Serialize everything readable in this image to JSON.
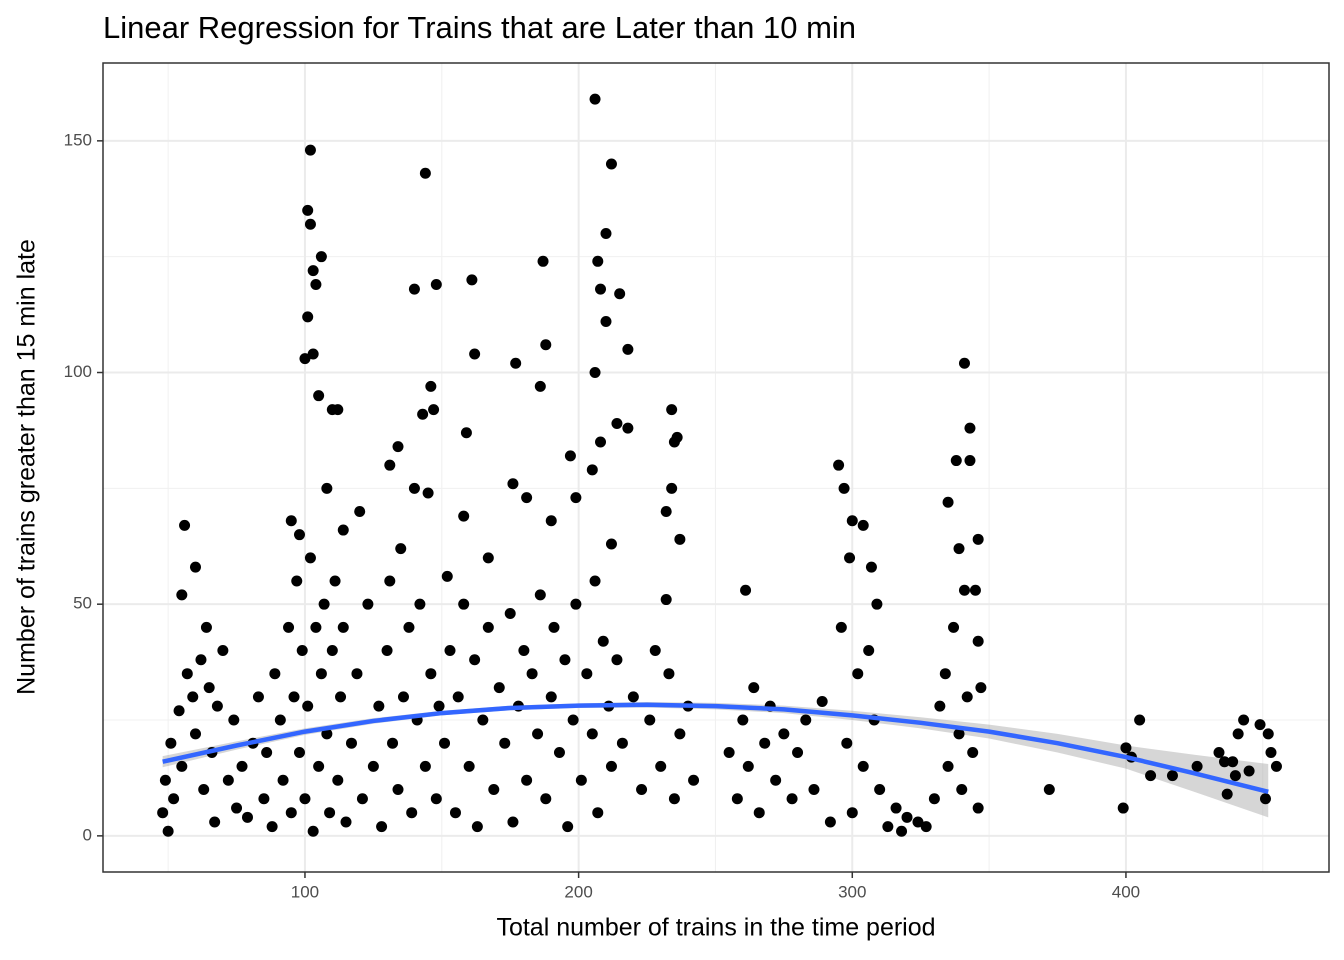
{
  "chart_data": {
    "type": "scatter",
    "title": "Linear Regression for Trains that are Later than 10 min",
    "x_label": "Total number of trains in the time period",
    "y_label": "Number of trains greater than 15 min late",
    "xlim": [
      26.2,
      474.2
    ],
    "ylim": [
      -7.8,
      166.8
    ],
    "xticks": [
      100,
      200,
      300,
      400
    ],
    "yticks": [
      0,
      50,
      100,
      150
    ],
    "minor_xticks": [
      50,
      150,
      250,
      350,
      450
    ],
    "minor_yticks": [
      25,
      75,
      125
    ],
    "grid": true,
    "color": "#000000",
    "x": [
      206,
      102,
      212,
      144,
      101,
      102,
      210,
      103,
      104,
      106,
      161,
      140,
      148,
      187,
      207,
      208,
      215,
      101,
      210,
      218,
      100,
      103,
      162,
      177,
      188,
      341,
      206,
      146,
      186,
      234,
      143,
      147,
      112,
      105,
      236,
      343,
      235,
      159,
      110,
      197,
      214,
      218,
      208,
      60,
      56,
      55,
      95,
      98,
      108,
      114,
      120,
      131,
      134,
      140,
      145,
      152,
      158,
      167,
      176,
      181,
      190,
      199,
      205,
      212,
      232,
      234,
      237,
      232,
      261,
      295,
      297,
      300,
      299,
      304,
      307,
      309,
      335,
      338,
      343,
      339,
      345,
      341,
      346,
      346,
      48,
      49,
      50,
      51,
      52,
      54,
      55,
      57,
      59,
      60,
      62,
      63,
      64,
      65,
      66,
      67,
      68,
      70,
      72,
      74,
      75,
      77,
      79,
      81,
      83,
      85,
      86,
      88,
      89,
      91,
      92,
      94,
      95,
      96,
      97,
      98,
      99,
      100,
      101,
      102,
      103,
      104,
      105,
      106,
      107,
      108,
      109,
      110,
      111,
      112,
      113,
      114,
      115,
      117,
      119,
      121,
      123,
      125,
      127,
      128,
      130,
      131,
      132,
      134,
      135,
      136,
      138,
      139,
      141,
      142,
      144,
      146,
      148,
      149,
      151,
      153,
      155,
      156,
      158,
      160,
      162,
      163,
      165,
      167,
      169,
      171,
      173,
      175,
      176,
      178,
      180,
      181,
      183,
      185,
      186,
      188,
      190,
      191,
      193,
      195,
      196,
      198,
      199,
      201,
      203,
      205,
      206,
      207,
      209,
      211,
      212,
      214,
      216,
      220,
      223,
      226,
      228,
      230,
      233,
      235,
      237,
      240,
      242,
      255,
      258,
      260,
      262,
      264,
      266,
      268,
      270,
      272,
      275,
      278,
      280,
      283,
      286,
      289,
      292,
      296,
      298,
      300,
      302,
      304,
      306,
      308,
      310,
      313,
      316,
      318,
      320,
      324,
      327,
      330,
      332,
      334,
      335,
      337,
      339,
      340,
      342,
      344,
      346,
      347,
      372,
      399,
      400,
      402,
      405,
      409,
      417,
      426,
      434,
      436,
      437,
      440,
      443,
      441,
      445,
      449,
      451,
      452,
      453,
      455,
      439
    ],
    "y": [
      159,
      148,
      145,
      143,
      135,
      132,
      130,
      122,
      119,
      125,
      120,
      118,
      119,
      124,
      124,
      118,
      117,
      112,
      111,
      105,
      103,
      104,
      104,
      102,
      106,
      102,
      100,
      97,
      97,
      92,
      91,
      92,
      92,
      95,
      86,
      88,
      85,
      87,
      92,
      82,
      89,
      88,
      85,
      58,
      67,
      52,
      68,
      65,
      75,
      66,
      70,
      80,
      84,
      75,
      74,
      56,
      69,
      60,
      76,
      73,
      68,
      73,
      79,
      63,
      70,
      75,
      64,
      51,
      53,
      80,
      75,
      68,
      60,
      67,
      58,
      50,
      72,
      81,
      81,
      62,
      53,
      53,
      64,
      42,
      5,
      12,
      1,
      20,
      8,
      27,
      15,
      35,
      30,
      22,
      38,
      10,
      45,
      32,
      18,
      3,
      28,
      40,
      12,
      25,
      6,
      15,
      4,
      20,
      30,
      8,
      18,
      2,
      35,
      25,
      12,
      45,
      5,
      30,
      55,
      18,
      40,
      8,
      28,
      60,
      1,
      45,
      15,
      35,
      50,
      22,
      5,
      40,
      55,
      12,
      30,
      45,
      3,
      20,
      35,
      8,
      50,
      15,
      28,
      2,
      40,
      55,
      20,
      10,
      62,
      30,
      45,
      5,
      25,
      50,
      15,
      35,
      8,
      28,
      20,
      40,
      5,
      30,
      50,
      15,
      38,
      2,
      25,
      45,
      10,
      32,
      20,
      48,
      3,
      28,
      40,
      12,
      35,
      22,
      52,
      8,
      30,
      45,
      18,
      38,
      2,
      25,
      50,
      12,
      35,
      22,
      55,
      5,
      42,
      28,
      15,
      38,
      20,
      30,
      10,
      25,
      40,
      15,
      35,
      8,
      22,
      28,
      12,
      18,
      8,
      25,
      15,
      32,
      5,
      20,
      28,
      12,
      22,
      8,
      18,
      25,
      10,
      29,
      3,
      45,
      20,
      5,
      35,
      15,
      40,
      25,
      10,
      2,
      6,
      1,
      4,
      3,
      2,
      8,
      28,
      35,
      15,
      45,
      22,
      10,
      30,
      18,
      6,
      32,
      10,
      6,
      19,
      17,
      25,
      13,
      13,
      15,
      18,
      16,
      9,
      13,
      25,
      22,
      14,
      24,
      8,
      22,
      18,
      15,
      16
    ],
    "fit": {
      "color": "#3366ff",
      "band_color": "#999999",
      "x": [
        48,
        75,
        100,
        125,
        150,
        175,
        200,
        225,
        250,
        275,
        300,
        325,
        350,
        375,
        400,
        425,
        452
      ],
      "y": [
        16,
        19.5,
        22.5,
        24.8,
        26.5,
        27.6,
        28.1,
        28.3,
        28,
        27.3,
        26,
        24.4,
        22.5,
        20,
        17,
        13.5,
        9.5
      ],
      "lower": [
        14.8,
        18.6,
        21.8,
        24.2,
        26,
        27.1,
        27.6,
        27.7,
        27.3,
        26.5,
        25,
        23.2,
        21,
        18,
        14.5,
        9.5,
        4
      ],
      "upper": [
        17.2,
        20.4,
        23.2,
        25.4,
        27,
        28.1,
        28.6,
        28.9,
        28.7,
        28.1,
        27,
        25.6,
        24,
        22,
        19.5,
        17.5,
        15.5
      ]
    }
  }
}
